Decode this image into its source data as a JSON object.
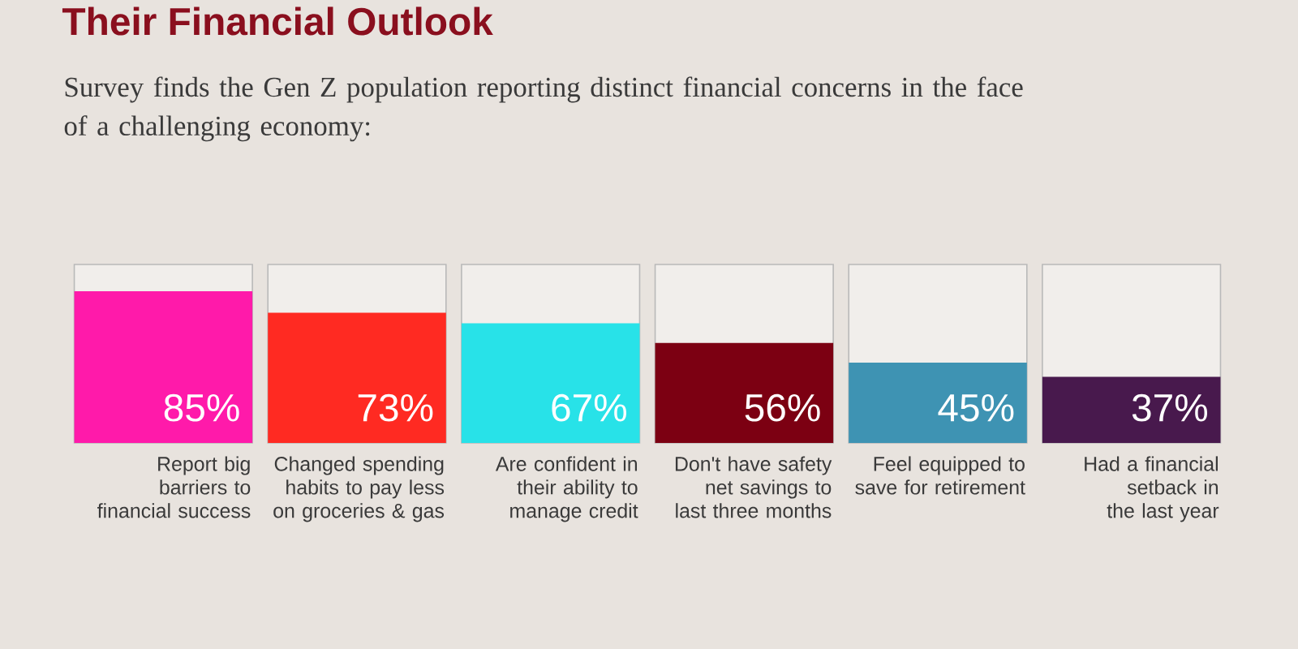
{
  "chart_data": {
    "type": "bar",
    "title": "Their Financial Outlook",
    "subtitle": "Survey finds the Gen Z population reporting distinct financial concerns in the face of a challenging economy:",
    "categories": [
      "Report big barriers to financial success",
      "Changed spending habits to pay less on groceries & gas",
      "Are confident in their ability to manage credit",
      "Don't have safety net savings to last three months",
      "Feel equipped to save for retirement",
      "Had a financial setback in the last year"
    ],
    "values": [
      85,
      73,
      67,
      56,
      45,
      37
    ],
    "colors": [
      "#ff1aaa",
      "#ff2a22",
      "#28e2e8",
      "#7c0012",
      "#3e93b3",
      "#48194d"
    ],
    "value_labels": [
      "85%",
      "73%",
      "67%",
      "56%",
      "45%",
      "37%"
    ],
    "ylim": [
      0,
      100
    ],
    "tick_labels": "x"
  }
}
